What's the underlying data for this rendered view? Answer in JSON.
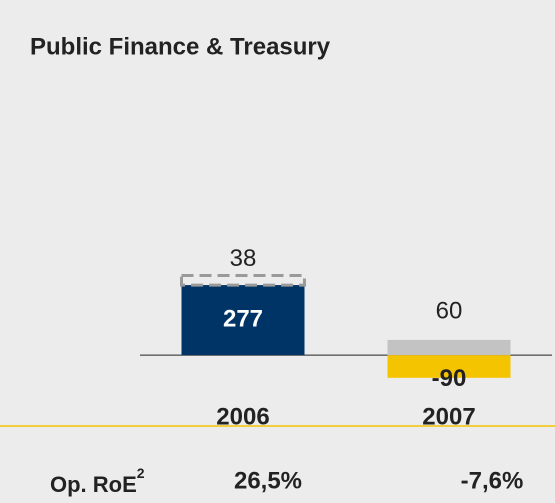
{
  "chart_data": {
    "type": "bar",
    "title": "Public Finance & Treasury",
    "categories": [
      "2006",
      "2007"
    ],
    "series": [
      {
        "values": [
          277,
          -90
        ],
        "colors": [
          "#003366",
          "#f5c400"
        ]
      },
      {
        "values": [
          38,
          60
        ],
        "colors": [
          "#9a9a9a",
          "#c3c3c3"
        ],
        "styles": [
          "dashed",
          "solid"
        ]
      }
    ],
    "ylim": [
      -120,
      400
    ]
  },
  "roe": {
    "label": "Op. RoE",
    "note": "2",
    "values": [
      "26,5%",
      "-7,6%"
    ]
  }
}
